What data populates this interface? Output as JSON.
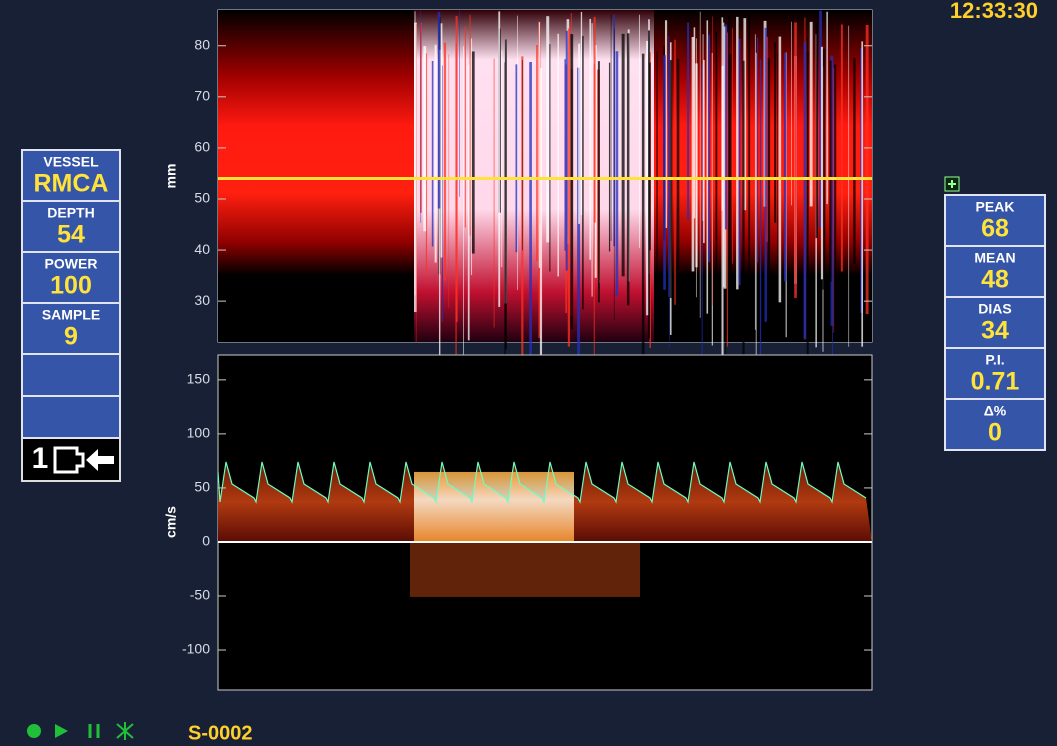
{
  "clock": "12:33:30",
  "left_panel": [
    {
      "label": "VESSEL",
      "value": "RMCA"
    },
    {
      "label": "DEPTH",
      "value": 54
    },
    {
      "label": "POWER",
      "value": 100
    },
    {
      "label": "SAMPLE",
      "value": 9
    }
  ],
  "probe": "1",
  "right_panel": [
    {
      "label": "PEAK",
      "value": 68
    },
    {
      "label": "MEAN",
      "value": 48
    },
    {
      "label": "DIAS",
      "value": 34
    },
    {
      "label": "P.I.",
      "value": 0.71
    },
    {
      "label": "Δ%",
      "value": 0
    }
  ],
  "depth_plot": {
    "axis_label": "mm",
    "ylim": [
      22,
      87
    ],
    "yticks": [
      30,
      40,
      50,
      60,
      70,
      80
    ]
  },
  "velocity_plot": {
    "axis_label": "cm/s",
    "ylim": [
      -137,
      173
    ],
    "yticks": [
      -100,
      -50,
      0,
      50,
      100,
      150
    ]
  },
  "study_id": "S-0002"
}
